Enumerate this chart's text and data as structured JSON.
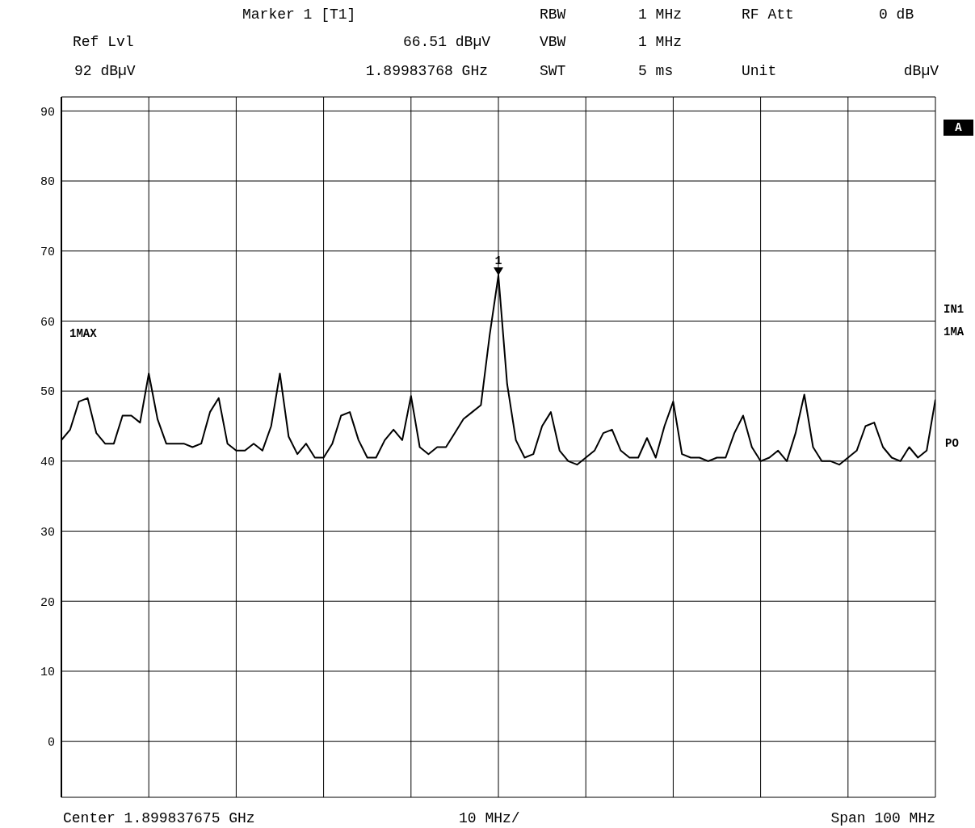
{
  "chart_data": {
    "type": "line",
    "categories": [
      null,
      null,
      null,
      null,
      null,
      null,
      null,
      null,
      null,
      null,
      null,
      null,
      null,
      null,
      null,
      null,
      null,
      null,
      null,
      null,
      null,
      null,
      null,
      null,
      null,
      null,
      null,
      null,
      null,
      null,
      null,
      null,
      null,
      null,
      null,
      null,
      null,
      null,
      null,
      null,
      null,
      null,
      null,
      null,
      null,
      null,
      null,
      null,
      null,
      null,
      null,
      null,
      null,
      null,
      null,
      null,
      null,
      null,
      null,
      null,
      null,
      null,
      null,
      null,
      null,
      null,
      null,
      null,
      null,
      null,
      null,
      null,
      null,
      null,
      null,
      null,
      null,
      null,
      null,
      null,
      null,
      null,
      null,
      null,
      null,
      null,
      null,
      null,
      null,
      null,
      null,
      null,
      null,
      null,
      null,
      null,
      null,
      null,
      null,
      null,
      null
    ],
    "series": [
      {
        "color": "#000000",
        "values": [
          43,
          44.5,
          48.5,
          49,
          44,
          42.5,
          42.5,
          46.5,
          46.5,
          45.5,
          52.5,
          46,
          42.5,
          42.5,
          42.5,
          42,
          42.5,
          47,
          49,
          42.5,
          41.5,
          41.5,
          42.5,
          41.5,
          45,
          52.5,
          43.5,
          41,
          42.5,
          40.5,
          40.5,
          42.5,
          46.5,
          47,
          43,
          40.5,
          40.5,
          43,
          44.5,
          43,
          49.3,
          42,
          41,
          42,
          42,
          44,
          46,
          47,
          48,
          58,
          66.51,
          51,
          43,
          40.5,
          41,
          45,
          47,
          41.5,
          40,
          39.5,
          40.5,
          41.5,
          44,
          44.5,
          41.5,
          40.5,
          40.5,
          43.3,
          40.5,
          45,
          48.5,
          41,
          40.5,
          40.5,
          40,
          40.5,
          40.5,
          44,
          46.5,
          42,
          40,
          40.5,
          41.5,
          40,
          44,
          49.5,
          42,
          40,
          40,
          39.5,
          40.5,
          41.5,
          45,
          45.5,
          42,
          40.5,
          40,
          42,
          40.5,
          41.5,
          48.8
        ]
      }
    ],
    "ylim": [
      -8,
      92
    ],
    "yticks": [
      0,
      10,
      20,
      30,
      40,
      50,
      60,
      70,
      80,
      90
    ],
    "grid": true,
    "marker": "none",
    "line_style": "solid",
    "annotations": [
      "Marker 1 [T1]",
      "Ref Lvl",
      "66.51 dBµV",
      "92 dBµV",
      "1.89983768 GHz",
      "RBW",
      "1 MHz",
      "RF Att",
      "0 dB",
      "VBW",
      "1 MHz",
      "SWT",
      "5 ms",
      "Unit",
      "dBµV",
      "A",
      "1MAX",
      "IN1",
      "1MA",
      "PO",
      "Center 1.899837675 GHz",
      "10 MHz/",
      "Span 100 MHz",
      {
        "text": "1",
        "y": 66.51
      }
    ]
  }
}
